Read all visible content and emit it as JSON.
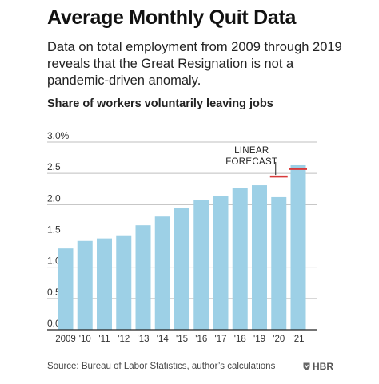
{
  "header": {
    "title": "Average Monthly Quit Data",
    "subtitle": "Data on total employment from 2009 through 2019 reveals that the Great Resignation is not a pandemic-driven anomaly."
  },
  "chart_data": {
    "type": "bar",
    "title": "Share of workers voluntarily leaving jobs",
    "categories": [
      "2009",
      "'10",
      "'11",
      "'12",
      "'13",
      "'14",
      "'15",
      "'16",
      "'17",
      "'18",
      "'19",
      "'20",
      "'21"
    ],
    "values": [
      1.3,
      1.42,
      1.46,
      1.51,
      1.67,
      1.81,
      1.95,
      2.07,
      2.14,
      2.26,
      2.31,
      2.12,
      2.63
    ],
    "y_ticks": [
      "0.0",
      "0.5",
      "1.0",
      "1.5",
      "2.0",
      "2.5",
      "3.0%"
    ],
    "ylim": [
      0,
      3.0
    ],
    "grid": true,
    "forecast": {
      "label_line1": "LINEAR",
      "label_line2": "FORECAST",
      "points": [
        {
          "category": "'20",
          "value": 2.45
        },
        {
          "category": "'21",
          "value": 2.57
        }
      ]
    },
    "colors": {
      "bar": "#9dd0e6",
      "grid": "#bfbfbf",
      "forecast": "#d83a3a",
      "axis": "#222222"
    }
  },
  "footer": {
    "source": "Source: Bureau of Labor Statistics, author’s calculations",
    "brand": "HBR",
    "brand_icon": "hbr-shield-icon"
  }
}
